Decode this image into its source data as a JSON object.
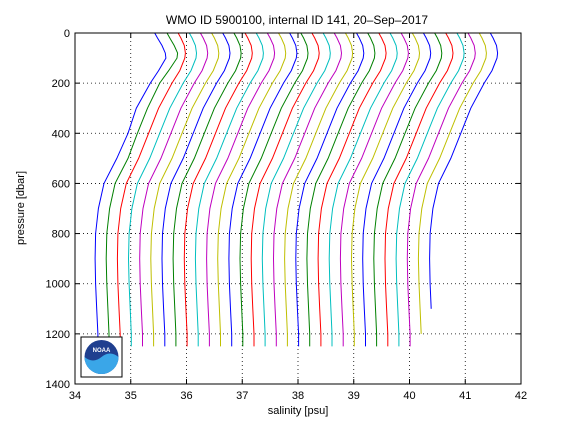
{
  "chart_data": {
    "type": "line",
    "title": "WMO ID 5900100, internal ID 141, 20–Sep–2017",
    "xlabel": "salinity [psu]",
    "ylabel": "pressure [dbar]",
    "xlim": [
      34,
      42
    ],
    "ylim": [
      0,
      1400
    ],
    "y_reversed": true,
    "grid": "dotted",
    "x_ticks": [
      "34",
      "35",
      "36",
      "37",
      "38",
      "39",
      "40",
      "41",
      "42"
    ],
    "y_ticks": [
      "0",
      "200",
      "400",
      "600",
      "800",
      "1000",
      "1200",
      "1400"
    ],
    "profile_pressures": [
      0,
      20,
      50,
      80,
      100,
      150,
      200,
      300,
      400,
      500,
      600,
      700,
      800,
      900,
      1000,
      1100,
      1200,
      1250
    ],
    "offset_step_psu": 0.2,
    "colors": [
      "#0000ff",
      "#008000",
      "#ff0000",
      "#00bfbf",
      "#bf00bf",
      "#bfbf00"
    ],
    "series": [
      {
        "values": [
          35.43,
          35.48,
          35.56,
          35.62,
          35.63,
          35.5,
          35.35,
          35.1,
          34.95,
          34.75,
          34.52,
          34.42,
          34.37,
          34.36,
          34.37,
          34.39,
          34.41,
          34.41
        ]
      },
      {
        "values": [
          35.65,
          35.7,
          35.78,
          35.84,
          35.83,
          35.68,
          35.52,
          35.3,
          35.12,
          34.95,
          34.72,
          34.62,
          34.57,
          34.56,
          34.57,
          34.59,
          34.61,
          34.61
        ]
      },
      {
        "values": [
          35.85,
          35.9,
          35.96,
          35.98,
          35.97,
          35.88,
          35.74,
          35.5,
          35.32,
          35.14,
          34.92,
          34.82,
          34.77,
          34.76,
          34.77,
          34.79,
          34.81,
          34.81
        ]
      },
      {
        "values": [
          36.05,
          36.1,
          36.16,
          36.18,
          36.17,
          36.08,
          35.94,
          35.7,
          35.52,
          35.34,
          35.12,
          35.02,
          34.97,
          34.96,
          34.97,
          34.99,
          35.01,
          35.01
        ]
      },
      {
        "values": [
          36.25,
          36.3,
          36.36,
          36.38,
          36.37,
          36.28,
          36.14,
          35.9,
          35.72,
          35.54,
          35.32,
          35.22,
          35.17,
          35.16,
          35.17,
          35.19,
          35.21,
          35.21
        ]
      },
      {
        "values": [
          36.45,
          36.5,
          36.56,
          36.58,
          36.57,
          36.48,
          36.34,
          36.1,
          35.92,
          35.74,
          35.52,
          35.42,
          35.37,
          35.36,
          35.37,
          35.39,
          35.41,
          35.41
        ]
      },
      {
        "values": [
          36.65,
          36.7,
          36.76,
          36.78,
          36.77,
          36.68,
          36.54,
          36.3,
          36.12,
          35.94,
          35.72,
          35.62,
          35.57,
          35.56,
          35.57,
          35.59,
          35.61,
          35.61
        ]
      },
      {
        "values": [
          36.85,
          36.9,
          36.96,
          36.98,
          36.97,
          36.88,
          36.74,
          36.5,
          36.32,
          36.14,
          35.92,
          35.82,
          35.77,
          35.76,
          35.77,
          35.79,
          35.81,
          35.81
        ]
      },
      {
        "values": [
          37.05,
          37.1,
          37.16,
          37.18,
          37.17,
          37.08,
          36.94,
          36.7,
          36.52,
          36.34,
          36.12,
          36.02,
          35.97,
          35.96,
          35.97,
          35.99,
          36.01,
          36.01
        ]
      },
      {
        "values": [
          37.25,
          37.3,
          37.36,
          37.38,
          37.37,
          37.28,
          37.14,
          36.9,
          36.72,
          36.54,
          36.32,
          36.22,
          36.17,
          36.16,
          36.17,
          36.19,
          36.21,
          36.21
        ]
      },
      {
        "values": [
          37.45,
          37.5,
          37.56,
          37.58,
          37.57,
          37.48,
          37.34,
          37.1,
          36.92,
          36.74,
          36.52,
          36.42,
          36.37,
          36.36,
          36.37,
          36.39,
          36.41,
          36.41
        ]
      },
      {
        "values": [
          37.65,
          37.7,
          37.76,
          37.78,
          37.77,
          37.68,
          37.54,
          37.3,
          37.12,
          36.94,
          36.72,
          36.62,
          36.57,
          36.56,
          36.57,
          36.59,
          36.61,
          36.61
        ]
      },
      {
        "values": [
          37.85,
          37.9,
          37.96,
          37.98,
          37.97,
          37.88,
          37.74,
          37.5,
          37.32,
          37.14,
          36.92,
          36.82,
          36.77,
          36.76,
          36.77,
          36.79,
          36.81,
          36.81
        ]
      },
      {
        "values": [
          38.05,
          38.1,
          38.16,
          38.18,
          38.17,
          38.08,
          37.94,
          37.7,
          37.52,
          37.34,
          37.12,
          37.02,
          36.97,
          36.96,
          36.97,
          36.99,
          37.01,
          37.01
        ]
      },
      {
        "values": [
          38.25,
          38.3,
          38.36,
          38.38,
          38.37,
          38.28,
          38.14,
          37.9,
          37.72,
          37.54,
          37.32,
          37.22,
          37.17,
          37.16,
          37.17,
          37.19,
          37.21,
          37.21
        ]
      },
      {
        "values": [
          38.45,
          38.5,
          38.56,
          38.58,
          38.57,
          38.48,
          38.34,
          38.1,
          37.92,
          37.74,
          37.52,
          37.42,
          37.37,
          37.36,
          37.37,
          37.39,
          37.41,
          37.41
        ]
      },
      {
        "values": [
          38.65,
          38.7,
          38.76,
          38.78,
          38.77,
          38.68,
          38.54,
          38.3,
          38.12,
          37.94,
          37.72,
          37.62,
          37.57,
          37.56,
          37.57,
          37.59,
          37.61,
          37.61
        ]
      },
      {
        "values": [
          38.85,
          38.9,
          38.96,
          38.98,
          38.97,
          38.88,
          38.74,
          38.5,
          38.32,
          38.14,
          37.92,
          37.82,
          37.77,
          37.76,
          37.77,
          37.79,
          37.81,
          37.81
        ]
      },
      {
        "values": [
          39.05,
          39.1,
          39.16,
          39.18,
          39.17,
          39.08,
          38.94,
          38.7,
          38.52,
          38.34,
          38.12,
          38.02,
          37.97,
          37.96,
          37.97,
          37.99,
          38.01,
          38.01
        ]
      },
      {
        "values": [
          39.25,
          39.3,
          39.36,
          39.38,
          39.37,
          39.28,
          39.14,
          38.9,
          38.72,
          38.54,
          38.32,
          38.22,
          38.17,
          38.16,
          38.17,
          38.19,
          38.21,
          38.21
        ]
      },
      {
        "values": [
          39.45,
          39.5,
          39.56,
          39.58,
          39.57,
          39.48,
          39.34,
          39.1,
          38.92,
          38.74,
          38.52,
          38.42,
          38.37,
          38.36,
          38.37,
          38.39,
          38.41,
          38.41
        ]
      },
      {
        "values": [
          39.65,
          39.7,
          39.76,
          39.78,
          39.77,
          39.68,
          39.54,
          39.3,
          39.12,
          38.94,
          38.72,
          38.62,
          38.57,
          38.56,
          38.57,
          38.59,
          38.61,
          38.61
        ]
      },
      {
        "values": [
          39.85,
          39.9,
          39.96,
          39.98,
          39.97,
          39.88,
          39.74,
          39.5,
          39.32,
          39.14,
          38.92,
          38.82,
          38.77,
          38.76,
          38.77,
          38.79,
          38.81,
          38.81
        ]
      },
      {
        "values": [
          40.05,
          40.1,
          40.16,
          40.18,
          40.17,
          40.08,
          39.94,
          39.7,
          39.52,
          39.34,
          39.12,
          39.02,
          38.97,
          38.96,
          38.97,
          38.99,
          39.01,
          39.01
        ]
      },
      {
        "values": [
          40.25,
          40.3,
          40.36,
          40.38,
          40.37,
          40.28,
          40.14,
          39.9,
          39.72,
          39.54,
          39.32,
          39.22,
          39.17,
          39.16,
          39.17,
          39.19,
          39.21,
          39.21
        ]
      },
      {
        "values": [
          40.45,
          40.5,
          40.56,
          40.58,
          40.57,
          40.48,
          40.34,
          40.1,
          39.92,
          39.74,
          39.52,
          39.42,
          39.37,
          39.36,
          39.37,
          39.39,
          39.41,
          39.41
        ]
      },
      {
        "values": [
          40.65,
          40.7,
          40.76,
          40.78,
          40.77,
          40.68,
          40.54,
          40.3,
          40.12,
          39.94,
          39.72,
          39.62,
          39.57,
          39.56,
          39.57,
          39.59,
          39.61,
          39.61
        ]
      },
      {
        "values": [
          40.85,
          40.9,
          40.96,
          40.98,
          40.97,
          40.88,
          40.74,
          40.5,
          40.32,
          40.14,
          39.92,
          39.82,
          39.77,
          39.76,
          39.77,
          39.79,
          39.81,
          39.81
        ]
      },
      {
        "values": [
          41.05,
          41.1,
          41.16,
          41.18,
          41.17,
          41.08,
          40.94,
          40.7,
          40.52,
          40.34,
          40.12,
          40.02,
          39.97,
          39.96,
          39.97,
          39.99,
          40.01,
          40.01
        ]
      },
      {
        "values": [
          41.25,
          41.3,
          41.36,
          41.38,
          41.37,
          41.28,
          41.14,
          40.9,
          40.72,
          40.54,
          40.32,
          40.22,
          40.17,
          40.16,
          40.17,
          40.19,
          40.21
        ]
      },
      {
        "values": [
          41.45,
          41.5,
          41.56,
          41.58,
          41.57,
          41.48,
          41.34,
          41.1,
          40.92,
          40.74,
          40.52,
          40.42,
          40.37,
          40.36,
          40.37,
          40.39
        ]
      }
    ]
  },
  "logo": {
    "text": "NOAA",
    "icon": "noaa-logo-icon"
  }
}
